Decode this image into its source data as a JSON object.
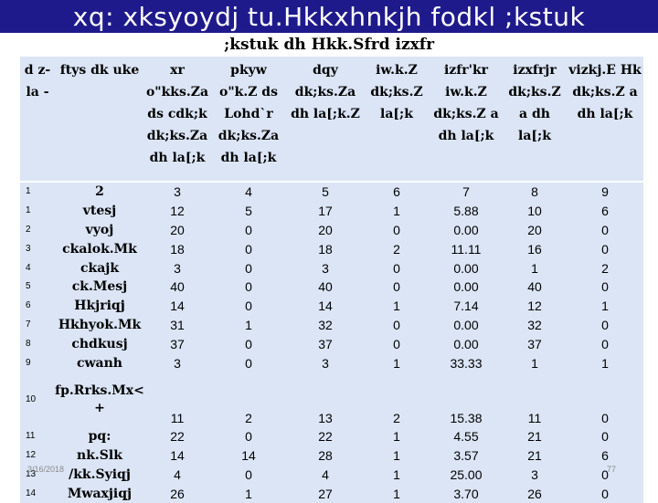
{
  "slide": {
    "title": "xq: xksyoydj tu.Hkkxhnkjh fodkl ;kstuk",
    "subtitle": ";kstuk dh Hkk.Sfrd izxfr",
    "date": "3/16/2018",
    "page_number": "77",
    "colors": {
      "title_bar": "#1f1a8c",
      "table_bg": "#dbe5f5"
    }
  },
  "table": {
    "headers": [
      "d z-la -",
      "ftys dk uke",
      "xr o\"kks.Za ds cdk;k dk;ks.Za dh la[;k",
      "pkyw o\"k.Z ds Lohd`r dk;ks.Za dh la[;k",
      "dqy dk;ks.Za dh la[;k.Z",
      "iw.k.Z dk;ks.Z la[;k",
      "izfr'kr iw.k.Z dk;ks.Z a dh la[;k",
      "izxfrjr dk;ks.Z a dh la[;k",
      "vizkj.E Hk dk;ks.Z a dh la[;k"
    ],
    "rows": [
      [
        "1",
        "2",
        "3",
        "4",
        "5",
        "6",
        "7",
        "8",
        "9"
      ],
      [
        "1",
        "vtesj",
        "12",
        "5",
        "17",
        "1",
        "5.88",
        "10",
        "6"
      ],
      [
        "2",
        "vyoj",
        "20",
        "0",
        "20",
        "0",
        "0.00",
        "20",
        "0"
      ],
      [
        "3",
        "ckalok.Mk",
        "18",
        "0",
        "18",
        "2",
        "11.11",
        "16",
        "0"
      ],
      [
        "4",
        "ckajk",
        "3",
        "0",
        "3",
        "0",
        "0.00",
        "1",
        "2"
      ],
      [
        "5",
        "ck.Mesj",
        "40",
        "0",
        "40",
        "0",
        "0.00",
        "40",
        "0"
      ],
      [
        "6",
        "Hkjriqj",
        "14",
        "0",
        "14",
        "1",
        "7.14",
        "12",
        "1"
      ],
      [
        "7",
        "Hkhyok.Mk",
        "31",
        "1",
        "32",
        "0",
        "0.00",
        "32",
        "0"
      ],
      [
        "8",
        "chdkusj",
        "37",
        "0",
        "37",
        "0",
        "0.00",
        "37",
        "0"
      ],
      [
        "9",
        "cwanh",
        "3",
        "0",
        "3",
        "1",
        "33.33",
        "1",
        "1"
      ],
      [
        "10",
        "fp.Rrks.Mx< +",
        "11",
        "2",
        "13",
        "2",
        "15.38",
        "11",
        "0"
      ],
      [
        "11",
        "pq:",
        "22",
        "0",
        "22",
        "1",
        "4.55",
        "21",
        "0"
      ],
      [
        "12",
        "nk.Slk",
        "14",
        "14",
        "28",
        "1",
        "3.57",
        "21",
        "6"
      ],
      [
        "13",
        "/kk.Syiqj",
        "4",
        "0",
        "4",
        "1",
        "25.00",
        "3",
        "0"
      ],
      [
        "14",
        "Mwaxjiqj",
        "26",
        "1",
        "27",
        "1",
        "3.70",
        "26",
        "0"
      ]
    ]
  }
}
